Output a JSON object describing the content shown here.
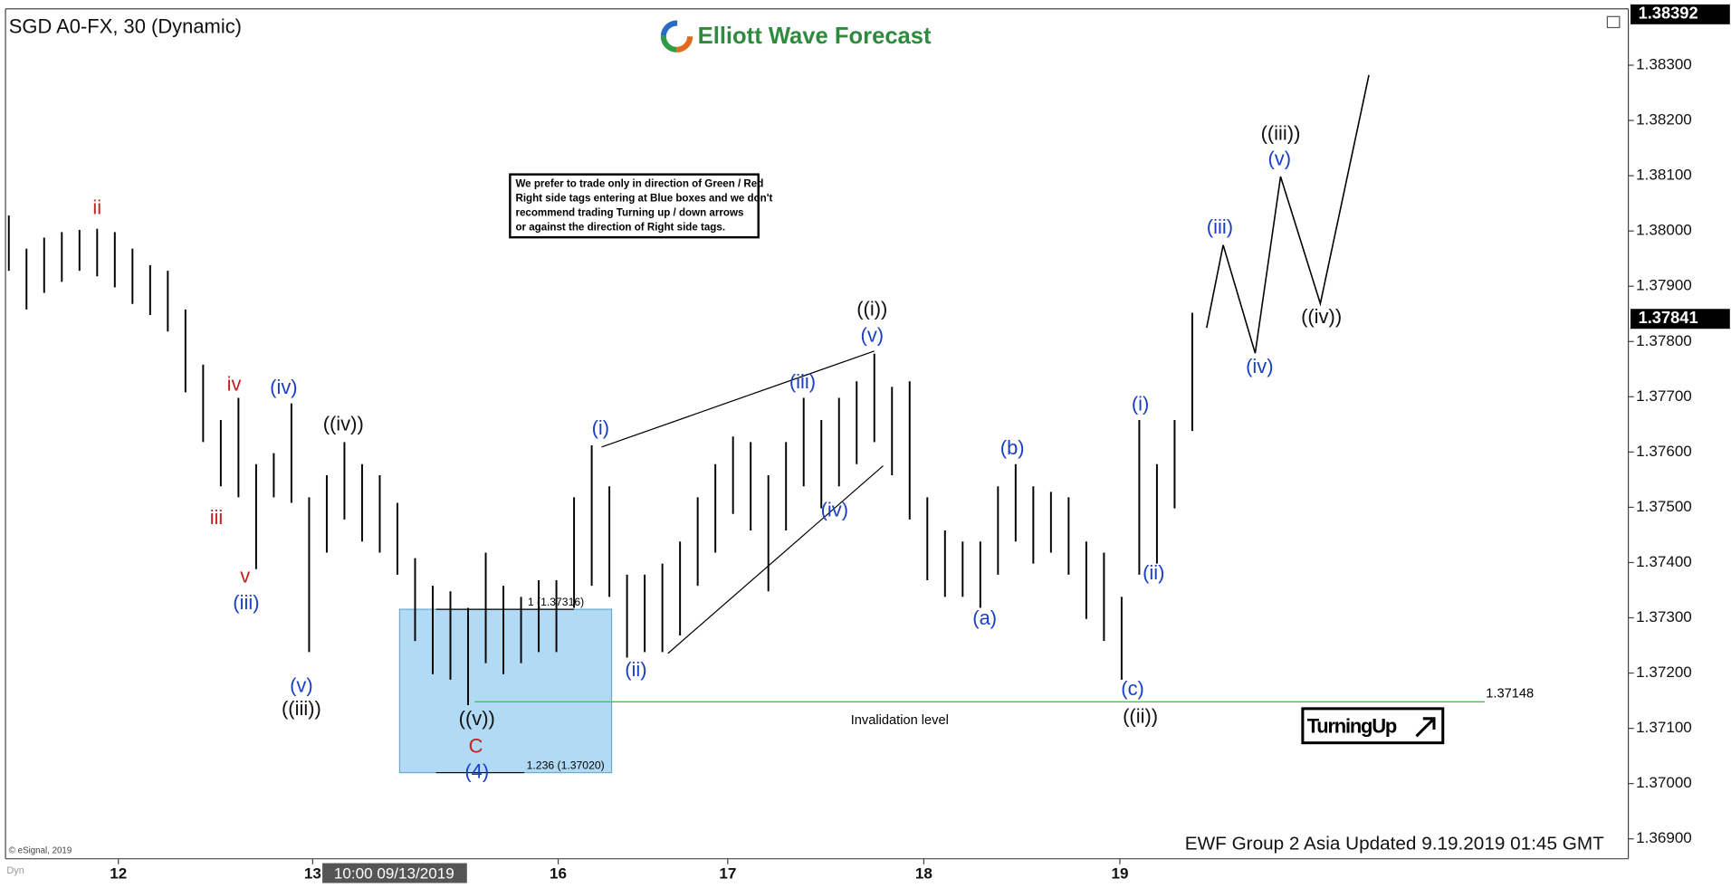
{
  "chart_data": {
    "type": "ohlc",
    "title": "SGD A0-FX, 30 (Dynamic)",
    "logo": "Elliott Wave Forecast",
    "note": [
      "We prefer to trade only in direction of Green / Red",
      "Right side tags entering at Blue boxes and we don't",
      "recommend trading Turning up / down arrows",
      "or against the direction of Right side tags."
    ],
    "color": "#000000",
    "high": [
      1.38028,
      1.37968,
      1.37988,
      1.37998,
      1.38002,
      1.38004,
      1.37998,
      1.37968,
      1.37938,
      1.37928,
      1.37858,
      1.37758,
      1.37658,
      1.37698,
      1.37578,
      1.37598,
      1.37688,
      1.37518,
      1.37558,
      1.37618,
      1.37578,
      1.37558,
      1.37508,
      1.37408,
      1.37358,
      1.37348,
      1.37318,
      1.37418,
      1.37358,
      1.37338,
      1.37368,
      1.37368,
      1.37518,
      1.37612,
      1.37538,
      1.37378,
      1.37378,
      1.37398,
      1.37438,
      1.37518,
      1.37578,
      1.37628,
      1.37618,
      1.37558,
      1.37618,
      1.37698,
      1.37658,
      1.37698,
      1.37728,
      1.37778,
      1.37718,
      1.37728,
      1.37518,
      1.37458,
      1.37438,
      1.37438,
      1.37538,
      1.37578,
      1.37538,
      1.37528,
      1.37518,
      1.37438,
      1.37418,
      1.37338,
      1.37658,
      1.37578,
      1.37658,
      1.37852
    ],
    "low": [
      1.37928,
      1.37858,
      1.37888,
      1.37908,
      1.37928,
      1.37918,
      1.37898,
      1.37868,
      1.37848,
      1.37818,
      1.37708,
      1.37618,
      1.37538,
      1.37518,
      1.37388,
      1.37518,
      1.37508,
      1.37238,
      1.37418,
      1.37478,
      1.37438,
      1.37418,
      1.37378,
      1.37258,
      1.37198,
      1.37188,
      1.37142,
      1.37218,
      1.37198,
      1.37218,
      1.37238,
      1.37238,
      1.37318,
      1.37358,
      1.37338,
      1.37228,
      1.37238,
      1.37238,
      1.37268,
      1.37358,
      1.37418,
      1.37488,
      1.37458,
      1.37348,
      1.37458,
      1.37538,
      1.37498,
      1.37538,
      1.37578,
      1.37618,
      1.37558,
      1.37478,
      1.37368,
      1.37338,
      1.37338,
      1.37318,
      1.37378,
      1.37438,
      1.37398,
      1.37418,
      1.37378,
      1.37298,
      1.37258,
      1.37188,
      1.37378,
      1.37398,
      1.37498,
      1.37638
    ],
    "xlim": [
      -0.2,
      91.7
    ],
    "xticks": [
      {
        "value": 6.2,
        "label": "12"
      },
      {
        "value": 17.2,
        "label": "13"
      },
      {
        "value": 31.1,
        "label": "16"
      },
      {
        "value": 40.7,
        "label": "17"
      },
      {
        "value": 51.8,
        "label": "18"
      },
      {
        "value": 62.9,
        "label": "19"
      }
    ],
    "ylim": [
      1.36864,
      1.38402
    ],
    "yticks": [
      {
        "value": 1.369,
        "label": "1.36900"
      },
      {
        "value": 1.37,
        "label": "1.37000"
      },
      {
        "value": 1.371,
        "label": "1.37100"
      },
      {
        "value": 1.372,
        "label": "1.37200"
      },
      {
        "value": 1.373,
        "label": "1.37300"
      },
      {
        "value": 1.374,
        "label": "1.37400"
      },
      {
        "value": 1.375,
        "label": "1.37500"
      },
      {
        "value": 1.376,
        "label": "1.37600"
      },
      {
        "value": 1.377,
        "label": "1.37700"
      },
      {
        "value": 1.378,
        "label": "1.37800"
      },
      {
        "value": 1.379,
        "label": "1.37900"
      },
      {
        "value": 1.38,
        "label": "1.38000"
      },
      {
        "value": 1.381,
        "label": "1.38100"
      },
      {
        "value": 1.382,
        "label": "1.38200"
      },
      {
        "value": 1.383,
        "label": "1.38300"
      }
    ],
    "high_marker": 1.38392,
    "last_price": 1.37841,
    "invalidation": {
      "value": 1.37148,
      "label": "Invalidation level",
      "color": "#33cc44"
    },
    "box_labels": [
      "1 (1.37316)",
      "1.236 (1.37020)"
    ],
    "wave_labels": [
      "ii",
      "iv",
      "iii",
      "v",
      "(iv)",
      "(iii)",
      "(v)",
      "((iii))",
      "((iv))",
      "((v))",
      "C",
      "(4)",
      "(i)",
      "(ii)",
      "(iii)",
      "(iv)",
      "((i))",
      "(v)",
      "(a)",
      "(b)",
      "(c)",
      "((ii))",
      "(i)",
      "(ii)",
      "(iii)",
      "(iv)",
      "(v)",
      "((iii))",
      "((iv))"
    ],
    "turning_signal": "TurningUp",
    "crosshair_time": "10:00 09/13/2019",
    "footer": "EWF Group 2 Asia Updated 9.19.2019 01:45 GMT",
    "copyright": "© eSignal, 2019",
    "corner": "Dyn"
  }
}
